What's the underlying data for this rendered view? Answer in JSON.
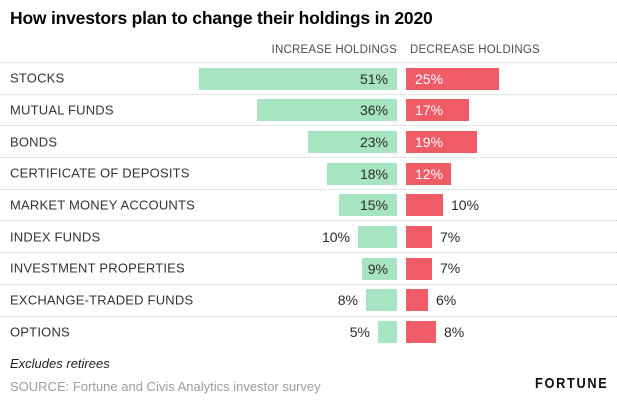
{
  "header": {
    "title": "How investors plan to change their holdings in 2020"
  },
  "column_headers": {
    "increase": "INCREASE HOLDINGS",
    "decrease": "DECREASE HOLDINGS"
  },
  "chart_data": {
    "type": "bar",
    "variant": "diverging-horizontal",
    "title": "How investors plan to change their holdings in 2020",
    "categories": [
      "STOCKS",
      "MUTUAL FUNDS",
      "BONDS",
      "CERTIFICATE OF DEPOSITS",
      "MARKET MONEY ACCOUNTS",
      "INDEX FUNDS",
      "INVESTMENT PROPERTIES",
      "EXCHANGE-TRADED FUNDS",
      "OPTIONS"
    ],
    "series": [
      {
        "name": "INCREASE HOLDINGS",
        "color": "#a7e4c2",
        "values": [
          51,
          36,
          23,
          18,
          15,
          10,
          9,
          8,
          5
        ]
      },
      {
        "name": "DECREASE HOLDINGS",
        "color": "#ef5b67",
        "values": [
          25,
          17,
          19,
          12,
          10,
          7,
          7,
          6,
          8
        ]
      }
    ],
    "unit": "%",
    "value_labels": {
      "increase": [
        "51%",
        "36%",
        "23%",
        "18%",
        "15%",
        "10%",
        "9%",
        "8%",
        "5%"
      ],
      "decrease": [
        "25%",
        "17%",
        "19%",
        "12%",
        "10%",
        "7%",
        "7%",
        "6%",
        "8%"
      ]
    },
    "legend_position": "top-as-column-headers",
    "grid": "dotted-row-separators"
  },
  "footer": {
    "note": "Excludes retirees",
    "source": "SOURCE: Fortune and Civis Analytics investor survey",
    "brand": "FORTUNE"
  },
  "colors": {
    "increase_bar": "#a7e4c2",
    "decrease_bar": "#ef5b67",
    "value_label_dark": "#2b2b2b",
    "value_label_on_red": "#ffffff",
    "row_divider": "#cfcfcf",
    "background": "#ffffff"
  }
}
